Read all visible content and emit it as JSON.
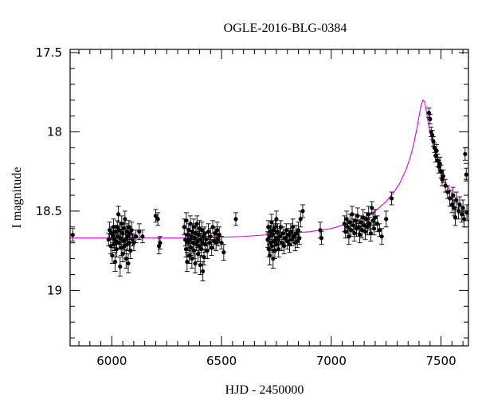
{
  "chart_data": {
    "type": "scatter",
    "title": "OGLE-2016-BLG-0384",
    "xlabel": "HJD - 2450000",
    "ylabel": "I magnitude",
    "xlim": [
      5810,
      7625
    ],
    "ylim": [
      19.35,
      17.48
    ],
    "y_inverted": true,
    "grid": false,
    "legend": "none",
    "x_major_ticks": [
      6000,
      6500,
      7000,
      7500
    ],
    "y_major_ticks": [
      17.5,
      18,
      18.5,
      19
    ],
    "x_tick_labels": [
      "6000",
      "6500",
      "7000",
      "7500"
    ],
    "y_tick_labels": [
      "17.5",
      "18",
      "18.5",
      "19"
    ],
    "colors": {
      "data": "#000000",
      "model": "#e000e0"
    },
    "series": [
      {
        "kind": "observations",
        "points": [
          [
            5822,
            18.65,
            0.04
          ],
          [
            5985,
            18.68,
            0.04
          ],
          [
            5990,
            18.62,
            0.05
          ],
          [
            5995,
            18.72,
            0.05
          ],
          [
            5998,
            18.64,
            0.04
          ],
          [
            6002,
            18.78,
            0.05
          ],
          [
            6005,
            18.66,
            0.04
          ],
          [
            6008,
            18.6,
            0.05
          ],
          [
            6010,
            18.71,
            0.04
          ],
          [
            6012,
            18.68,
            0.05
          ],
          [
            6015,
            18.82,
            0.06
          ],
          [
            6018,
            18.63,
            0.04
          ],
          [
            6020,
            18.69,
            0.05
          ],
          [
            6022,
            18.74,
            0.05
          ],
          [
            6025,
            18.6,
            0.04
          ],
          [
            6028,
            18.66,
            0.05
          ],
          [
            6030,
            18.52,
            0.05
          ],
          [
            6033,
            18.7,
            0.04
          ],
          [
            6035,
            18.62,
            0.05
          ],
          [
            6038,
            18.85,
            0.06
          ],
          [
            6040,
            18.67,
            0.04
          ],
          [
            6043,
            18.73,
            0.05
          ],
          [
            6045,
            18.58,
            0.05
          ],
          [
            6048,
            18.64,
            0.04
          ],
          [
            6050,
            18.77,
            0.05
          ],
          [
            6053,
            18.69,
            0.05
          ],
          [
            6055,
            18.61,
            0.04
          ],
          [
            6058,
            18.72,
            0.05
          ],
          [
            6060,
            18.55,
            0.05
          ],
          [
            6063,
            18.68,
            0.04
          ],
          [
            6065,
            18.8,
            0.06
          ],
          [
            6068,
            18.63,
            0.05
          ],
          [
            6070,
            18.71,
            0.04
          ],
          [
            6073,
            18.66,
            0.05
          ],
          [
            6075,
            18.83,
            0.06
          ],
          [
            6078,
            18.6,
            0.04
          ],
          [
            6080,
            18.7,
            0.05
          ],
          [
            6083,
            18.64,
            0.04
          ],
          [
            6085,
            18.75,
            0.05
          ],
          [
            6090,
            18.62,
            0.05
          ],
          [
            6095,
            18.68,
            0.04
          ],
          [
            6100,
            18.7,
            0.05
          ],
          [
            6110,
            18.66,
            0.04
          ],
          [
            6125,
            18.63,
            0.05
          ],
          [
            6140,
            18.66,
            0.04
          ],
          [
            6200,
            18.53,
            0.04
          ],
          [
            6210,
            18.55,
            0.04
          ],
          [
            6215,
            18.72,
            0.05
          ],
          [
            6220,
            18.7,
            0.04
          ],
          [
            6330,
            18.6,
            0.05
          ],
          [
            6335,
            18.68,
            0.04
          ],
          [
            6338,
            18.74,
            0.05
          ],
          [
            6340,
            18.56,
            0.05
          ],
          [
            6343,
            18.82,
            0.06
          ],
          [
            6345,
            18.65,
            0.04
          ],
          [
            6348,
            18.7,
            0.05
          ],
          [
            6350,
            18.62,
            0.04
          ],
          [
            6353,
            18.78,
            0.05
          ],
          [
            6355,
            18.68,
            0.04
          ],
          [
            6358,
            18.58,
            0.05
          ],
          [
            6360,
            18.73,
            0.05
          ],
          [
            6363,
            18.66,
            0.04
          ],
          [
            6365,
            18.8,
            0.06
          ],
          [
            6368,
            18.63,
            0.05
          ],
          [
            6370,
            18.7,
            0.04
          ],
          [
            6373,
            18.6,
            0.05
          ],
          [
            6375,
            18.75,
            0.05
          ],
          [
            6378,
            18.67,
            0.04
          ],
          [
            6380,
            18.83,
            0.06
          ],
          [
            6383,
            18.64,
            0.05
          ],
          [
            6385,
            18.71,
            0.04
          ],
          [
            6388,
            18.58,
            0.05
          ],
          [
            6390,
            18.69,
            0.04
          ],
          [
            6393,
            18.77,
            0.05
          ],
          [
            6395,
            18.65,
            0.05
          ],
          [
            6398,
            18.72,
            0.04
          ],
          [
            6400,
            18.61,
            0.05
          ],
          [
            6403,
            18.84,
            0.06
          ],
          [
            6405,
            18.68,
            0.04
          ],
          [
            6408,
            18.74,
            0.05
          ],
          [
            6410,
            18.62,
            0.05
          ],
          [
            6413,
            18.7,
            0.04
          ],
          [
            6415,
            18.88,
            0.06
          ],
          [
            6418,
            18.66,
            0.05
          ],
          [
            6420,
            18.79,
            0.05
          ],
          [
            6423,
            18.64,
            0.04
          ],
          [
            6425,
            18.71,
            0.05
          ],
          [
            6430,
            18.68,
            0.04
          ],
          [
            6435,
            18.75,
            0.05
          ],
          [
            6440,
            18.63,
            0.05
          ],
          [
            6445,
            18.7,
            0.04
          ],
          [
            6450,
            18.66,
            0.05
          ],
          [
            6455,
            18.73,
            0.05
          ],
          [
            6460,
            18.6,
            0.04
          ],
          [
            6465,
            18.69,
            0.05
          ],
          [
            6470,
            18.64,
            0.04
          ],
          [
            6475,
            18.7,
            0.05
          ],
          [
            6480,
            18.62,
            0.05
          ],
          [
            6485,
            18.68,
            0.04
          ],
          [
            6490,
            18.65,
            0.05
          ],
          [
            6500,
            18.7,
            0.04
          ],
          [
            6510,
            18.76,
            0.05
          ],
          [
            6565,
            18.55,
            0.04
          ],
          [
            6710,
            18.68,
            0.05
          ],
          [
            6713,
            18.6,
            0.04
          ],
          [
            6715,
            18.74,
            0.05
          ],
          [
            6718,
            18.66,
            0.05
          ],
          [
            6720,
            18.78,
            0.06
          ],
          [
            6723,
            18.63,
            0.04
          ],
          [
            6725,
            18.7,
            0.05
          ],
          [
            6728,
            18.57,
            0.05
          ],
          [
            6730,
            18.72,
            0.04
          ],
          [
            6733,
            18.65,
            0.05
          ],
          [
            6735,
            18.8,
            0.06
          ],
          [
            6738,
            18.62,
            0.04
          ],
          [
            6740,
            18.69,
            0.05
          ],
          [
            6743,
            18.75,
            0.05
          ],
          [
            6745,
            18.6,
            0.04
          ],
          [
            6748,
            18.67,
            0.05
          ],
          [
            6750,
            18.55,
            0.05
          ],
          [
            6753,
            18.71,
            0.04
          ],
          [
            6755,
            18.63,
            0.05
          ],
          [
            6758,
            18.68,
            0.04
          ],
          [
            6760,
            18.74,
            0.05
          ],
          [
            6765,
            18.66,
            0.05
          ],
          [
            6770,
            18.6,
            0.04
          ],
          [
            6775,
            18.7,
            0.05
          ],
          [
            6780,
            18.64,
            0.04
          ],
          [
            6785,
            18.72,
            0.05
          ],
          [
            6790,
            18.67,
            0.05
          ],
          [
            6795,
            18.62,
            0.04
          ],
          [
            6800,
            18.69,
            0.05
          ],
          [
            6805,
            18.65,
            0.04
          ],
          [
            6810,
            18.71,
            0.05
          ],
          [
            6815,
            18.63,
            0.05
          ],
          [
            6820,
            18.68,
            0.04
          ],
          [
            6825,
            18.6,
            0.05
          ],
          [
            6830,
            18.66,
            0.04
          ],
          [
            6835,
            18.7,
            0.05
          ],
          [
            6840,
            18.64,
            0.05
          ],
          [
            6845,
            18.69,
            0.04
          ],
          [
            6850,
            18.62,
            0.05
          ],
          [
            6855,
            18.67,
            0.04
          ],
          [
            6860,
            18.55,
            0.05
          ],
          [
            6870,
            18.5,
            0.04
          ],
          [
            6950,
            18.62,
            0.05
          ],
          [
            6955,
            18.67,
            0.04
          ],
          [
            7060,
            18.58,
            0.05
          ],
          [
            7065,
            18.63,
            0.04
          ],
          [
            7070,
            18.55,
            0.05
          ],
          [
            7075,
            18.6,
            0.04
          ],
          [
            7080,
            18.66,
            0.05
          ],
          [
            7085,
            18.57,
            0.05
          ],
          [
            7090,
            18.62,
            0.04
          ],
          [
            7095,
            18.52,
            0.05
          ],
          [
            7100,
            18.59,
            0.04
          ],
          [
            7105,
            18.64,
            0.05
          ],
          [
            7110,
            18.56,
            0.04
          ],
          [
            7115,
            18.61,
            0.05
          ],
          [
            7120,
            18.53,
            0.05
          ],
          [
            7125,
            18.6,
            0.04
          ],
          [
            7130,
            18.65,
            0.05
          ],
          [
            7135,
            18.57,
            0.04
          ],
          [
            7140,
            18.62,
            0.05
          ],
          [
            7145,
            18.54,
            0.05
          ],
          [
            7150,
            18.59,
            0.04
          ],
          [
            7155,
            18.63,
            0.05
          ],
          [
            7160,
            18.55,
            0.04
          ],
          [
            7165,
            18.6,
            0.05
          ],
          [
            7170,
            18.52,
            0.05
          ],
          [
            7175,
            18.58,
            0.04
          ],
          [
            7180,
            18.64,
            0.05
          ],
          [
            7185,
            18.48,
            0.04
          ],
          [
            7190,
            18.56,
            0.05
          ],
          [
            7195,
            18.61,
            0.04
          ],
          [
            7200,
            18.54,
            0.05
          ],
          [
            7210,
            18.58,
            0.05
          ],
          [
            7220,
            18.62,
            0.04
          ],
          [
            7230,
            18.66,
            0.05
          ],
          [
            7250,
            18.55,
            0.05
          ],
          [
            7275,
            18.42,
            0.04
          ],
          [
            7445,
            17.88,
            0.03
          ],
          [
            7450,
            17.92,
            0.03
          ],
          [
            7455,
            18.0,
            0.03
          ],
          [
            7460,
            18.02,
            0.03
          ],
          [
            7465,
            18.06,
            0.03
          ],
          [
            7470,
            18.1,
            0.03
          ],
          [
            7475,
            18.15,
            0.04
          ],
          [
            7480,
            18.12,
            0.04
          ],
          [
            7485,
            18.18,
            0.04
          ],
          [
            7490,
            18.22,
            0.04
          ],
          [
            7495,
            18.2,
            0.04
          ],
          [
            7500,
            18.25,
            0.04
          ],
          [
            7505,
            18.3,
            0.04
          ],
          [
            7510,
            18.28,
            0.04
          ],
          [
            7520,
            18.34,
            0.04
          ],
          [
            7530,
            18.38,
            0.04
          ],
          [
            7540,
            18.42,
            0.05
          ],
          [
            7550,
            18.46,
            0.05
          ],
          [
            7555,
            18.4,
            0.05
          ],
          [
            7560,
            18.48,
            0.05
          ],
          [
            7565,
            18.54,
            0.05
          ],
          [
            7570,
            18.43,
            0.05
          ],
          [
            7580,
            18.5,
            0.05
          ],
          [
            7585,
            18.46,
            0.05
          ],
          [
            7595,
            18.52,
            0.05
          ],
          [
            7600,
            18.48,
            0.05
          ],
          [
            7605,
            18.55,
            0.05
          ],
          [
            7610,
            18.14,
            0.04
          ],
          [
            7615,
            18.27,
            0.04
          ],
          [
            7618,
            18.51,
            0.05
          ]
        ]
      },
      {
        "kind": "model",
        "baseline": 18.67,
        "peak_x": 7418,
        "peak_y": 17.8,
        "curve": [
          [
            5810,
            18.67
          ],
          [
            6000,
            18.67
          ],
          [
            6200,
            18.67
          ],
          [
            6400,
            18.67
          ],
          [
            6600,
            18.66
          ],
          [
            6800,
            18.64
          ],
          [
            6900,
            18.63
          ],
          [
            7000,
            18.61
          ],
          [
            7050,
            18.59
          ],
          [
            7100,
            18.57
          ],
          [
            7150,
            18.54
          ],
          [
            7200,
            18.5
          ],
          [
            7250,
            18.44
          ],
          [
            7280,
            18.39
          ],
          [
            7310,
            18.33
          ],
          [
            7340,
            18.24
          ],
          [
            7360,
            18.16
          ],
          [
            7375,
            18.08
          ],
          [
            7390,
            17.98
          ],
          [
            7400,
            17.9
          ],
          [
            7410,
            17.83
          ],
          [
            7418,
            17.8
          ],
          [
            7425,
            17.81
          ],
          [
            7432,
            17.86
          ],
          [
            7440,
            17.93
          ],
          [
            7450,
            18.0
          ],
          [
            7465,
            18.09
          ],
          [
            7480,
            18.17
          ],
          [
            7500,
            18.25
          ],
          [
            7525,
            18.33
          ],
          [
            7550,
            18.39
          ],
          [
            7575,
            18.44
          ],
          [
            7600,
            18.48
          ],
          [
            7625,
            18.51
          ]
        ]
      }
    ]
  }
}
